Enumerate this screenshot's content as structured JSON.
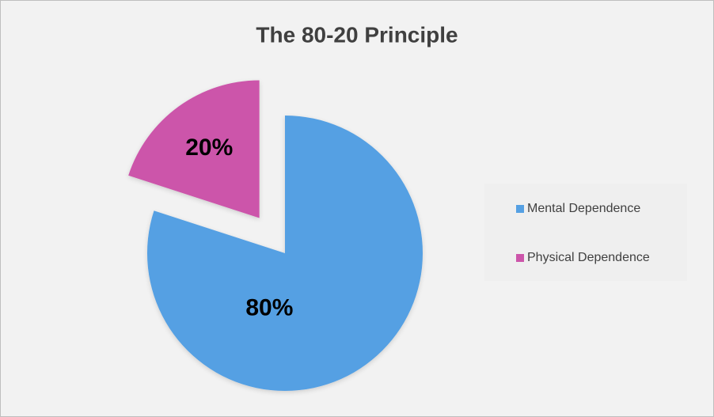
{
  "chart_data": {
    "type": "pie",
    "title": "The 80-20 Principle",
    "categories": [
      "Mental Dependence",
      "Physical Dependence"
    ],
    "values": [
      80,
      20
    ],
    "value_labels": [
      "80%",
      "20%"
    ],
    "colors": [
      "#55a0e3",
      "#cc55aa"
    ],
    "legend": "right"
  }
}
